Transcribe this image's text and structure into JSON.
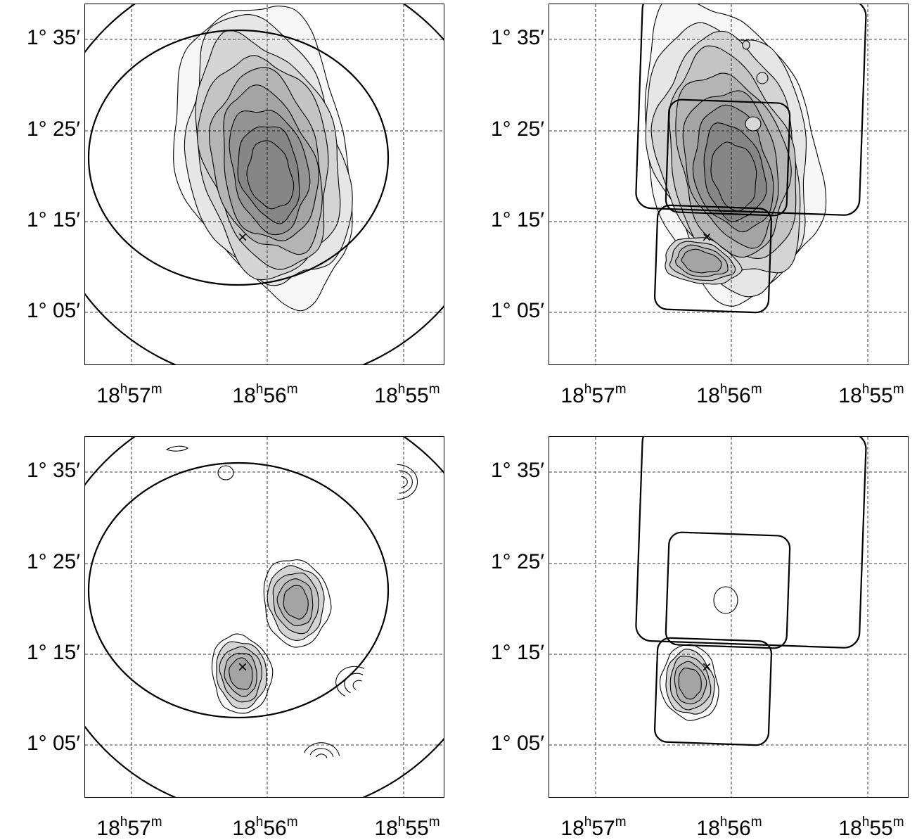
{
  "chart_data": [
    {
      "type": "contour",
      "panel": "top-left",
      "x_ticks": [
        {
          "h": "18",
          "m": "57",
          "ra_min": 57
        },
        {
          "h": "18",
          "m": "56",
          "ra_min": 56
        },
        {
          "h": "18",
          "m": "55",
          "ra_min": 55
        }
      ],
      "y_ticks": [
        {
          "label": "1° 35′",
          "arcmin": 95
        },
        {
          "label": "1° 25′",
          "arcmin": 85
        },
        {
          "label": "1° 15′",
          "arcmin": 75
        },
        {
          "label": "1° 05′",
          "arcmin": 65
        }
      ],
      "xlim_ra_min": [
        57.5,
        54.8
      ],
      "ylim_arcmin": [
        59,
        99
      ],
      "grid": true,
      "marker": {
        "symbol": "×",
        "ra_min": 56.18,
        "dec_arcmin": 73.5
      },
      "footprint": "circles",
      "emission": "extended",
      "peak": {
        "ra_min": 56.0,
        "dec_arcmin": 80.2
      }
    },
    {
      "type": "contour",
      "panel": "top-right",
      "x_ticks": [
        {
          "h": "18",
          "m": "57",
          "ra_min": 57
        },
        {
          "h": "18",
          "m": "56",
          "ra_min": 56
        },
        {
          "h": "18",
          "m": "55",
          "ra_min": 55
        }
      ],
      "y_ticks": [
        {
          "label": "1° 35′",
          "arcmin": 95
        },
        {
          "label": "1° 25′",
          "arcmin": 85
        },
        {
          "label": "1° 15′",
          "arcmin": 75
        },
        {
          "label": "1° 05′",
          "arcmin": 65
        }
      ],
      "xlim_ra_min": [
        57.5,
        54.8
      ],
      "ylim_arcmin": [
        59,
        99
      ],
      "grid": true,
      "marker": {
        "symbol": "×",
        "ra_min": 56.18,
        "dec_arcmin": 73.5
      },
      "footprint": "squares",
      "emission": "extended",
      "peak": {
        "ra_min": 56.0,
        "dec_arcmin": 80.2
      }
    },
    {
      "type": "contour",
      "panel": "bottom-left",
      "x_ticks": [
        {
          "h": "18",
          "m": "57",
          "ra_min": 57
        },
        {
          "h": "18",
          "m": "56",
          "ra_min": 56
        },
        {
          "h": "18",
          "m": "55",
          "ra_min": 55
        }
      ],
      "y_ticks": [
        {
          "label": "1° 35′",
          "arcmin": 95
        },
        {
          "label": "1° 25′",
          "arcmin": 85
        },
        {
          "label": "1° 15′",
          "arcmin": 75
        },
        {
          "label": "1° 05′",
          "arcmin": 65
        }
      ],
      "xlim_ra_min": [
        57.5,
        54.8
      ],
      "ylim_arcmin": [
        59,
        99
      ],
      "grid": true,
      "marker": {
        "symbol": "×",
        "ra_min": 56.18,
        "dec_arcmin": 73.5
      },
      "footprint": "circles",
      "emission": "compact",
      "sources": [
        {
          "ra_min": 56.18,
          "dec_arcmin": 73.0
        },
        {
          "ra_min": 55.8,
          "dec_arcmin": 81.0
        }
      ]
    },
    {
      "type": "contour",
      "panel": "bottom-right",
      "x_ticks": [
        {
          "h": "18",
          "m": "57",
          "ra_min": 57
        },
        {
          "h": "18",
          "m": "56",
          "ra_min": 56
        },
        {
          "h": "18",
          "m": "55",
          "ra_min": 55
        }
      ],
      "y_ticks": [
        {
          "label": "1° 35′",
          "arcmin": 95
        },
        {
          "label": "1° 25′",
          "arcmin": 85
        },
        {
          "label": "1° 15′",
          "arcmin": 75
        },
        {
          "label": "1° 05′",
          "arcmin": 65
        }
      ],
      "xlim_ra_min": [
        57.5,
        54.8
      ],
      "ylim_arcmin": [
        59,
        99
      ],
      "grid": true,
      "marker": {
        "symbol": "×",
        "ra_min": 56.18,
        "dec_arcmin": 73.5
      },
      "footprint": "squares",
      "emission": "compact",
      "sources": [
        {
          "ra_min": 56.2,
          "dec_arcmin": 72.5
        }
      ]
    }
  ]
}
